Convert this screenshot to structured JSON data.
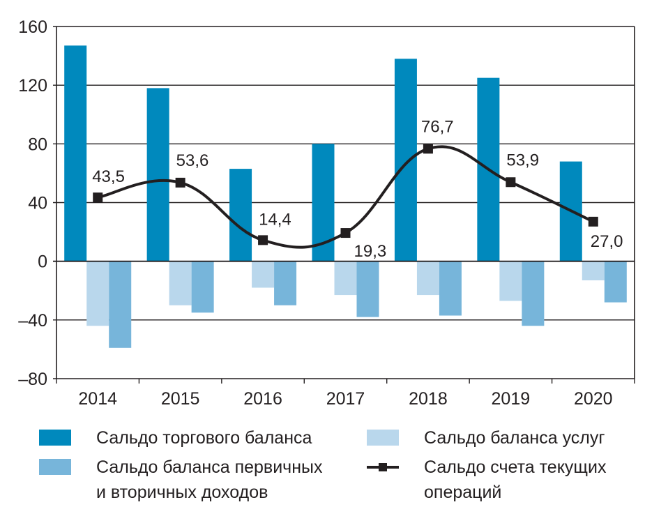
{
  "chart_data": {
    "type": "bar",
    "title": "",
    "xlabel": "",
    "ylabel": "",
    "categories": [
      "2014",
      "2015",
      "2016",
      "2017",
      "2018",
      "2019",
      "2020"
    ],
    "ylim": [
      -80,
      160
    ],
    "yticks": [
      -80,
      -40,
      0,
      40,
      80,
      120,
      160
    ],
    "ytick_labels": [
      "–80",
      "–40",
      "0",
      "40",
      "80",
      "120",
      "160"
    ],
    "grid": true,
    "legend_position": "bottom",
    "series": [
      {
        "name": "Сальдо торгового баланса",
        "kind": "bar",
        "color": "#0089bd",
        "values": [
          147,
          118,
          63,
          80,
          138,
          125,
          68
        ]
      },
      {
        "name": "Сальдо баланса услуг",
        "kind": "bar",
        "color": "#b9d7ec",
        "values": [
          -44,
          -30,
          -18,
          -23,
          -23,
          -27,
          -13
        ]
      },
      {
        "name": "Сальдо баланса первичных\nи вторичных доходов",
        "kind": "bar",
        "color": "#77b5da",
        "values": [
          -59,
          -35,
          -30,
          -38,
          -37,
          -44,
          -28
        ]
      },
      {
        "name": "Сальдо счета текущих\nопераций",
        "kind": "line",
        "color": "#231f20",
        "values": [
          43.5,
          53.6,
          14.4,
          19.3,
          76.7,
          53.9,
          27.0
        ],
        "data_labels": [
          "43,5",
          "53,6",
          "14,4",
          "19,3",
          "76,7",
          "53,9",
          "27,0"
        ]
      }
    ]
  },
  "legend": {
    "items": [
      {
        "label": "Сальдо торгового баланса",
        "icon": "bar-swatch",
        "color": "#0089bd"
      },
      {
        "label": "Сальдо баланса услуг",
        "icon": "bar-swatch",
        "color": "#b9d7ec"
      },
      {
        "label": "Сальдо баланса первичных\nи вторичных доходов",
        "icon": "bar-swatch",
        "color": "#77b5da"
      },
      {
        "label": "Сальдо счета текущих\nопераций",
        "icon": "line-marker-swatch",
        "color": "#231f20"
      }
    ]
  }
}
